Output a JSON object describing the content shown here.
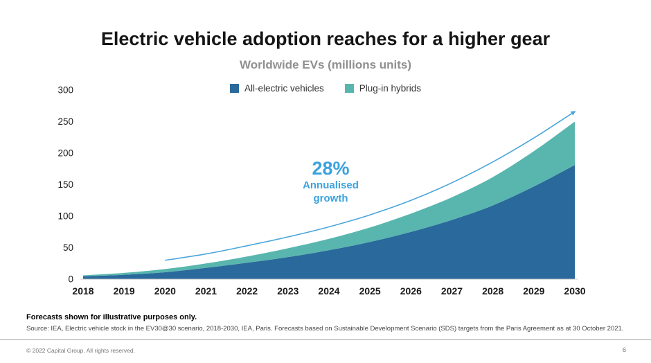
{
  "slide": {
    "title": "Electric vehicle adoption reaches for a higher gear",
    "subtitle": "Worldwide EVs (millions units)"
  },
  "chart_data": {
    "type": "area",
    "stacked": true,
    "title": "Worldwide EVs (millions units)",
    "x": [
      "2018",
      "2019",
      "2020",
      "2021",
      "2022",
      "2023",
      "2024",
      "2025",
      "2026",
      "2027",
      "2028",
      "2029",
      "2030"
    ],
    "series": [
      {
        "name": "All-electric vehicles",
        "color": "#2a699b",
        "values": [
          4.5,
          7,
          11,
          18,
          26,
          35,
          46,
          59,
          75,
          94,
          117,
          147,
          181
        ]
      },
      {
        "name": "Plug-in hybrids",
        "color": "#58b6ae",
        "values": [
          1.5,
          3,
          5,
          7,
          10,
          14,
          18,
          23,
          29,
          36,
          45,
          56,
          69
        ]
      }
    ],
    "totals": [
      6,
      10,
      16,
      25,
      36,
      49,
      64,
      82,
      104,
      130,
      162,
      203,
      250
    ],
    "xlabel": "",
    "ylabel": "",
    "ylim": [
      0,
      300
    ],
    "yticks": [
      0,
      50,
      100,
      150,
      200,
      250,
      300
    ],
    "grid": false,
    "legend_position": "top",
    "annotation": {
      "headline": "28%",
      "line1": "Annualised",
      "line2": "growth",
      "color": "#3ba2de"
    },
    "trend_arrow": {
      "color": "#4aa5da",
      "x": [
        2020,
        2021,
        2022,
        2023,
        2024,
        2025,
        2026,
        2027,
        2028,
        2029,
        2030
      ],
      "values": [
        30,
        40,
        53,
        67,
        83,
        102,
        125,
        153,
        186,
        224,
        266
      ]
    }
  },
  "footer": {
    "disclaimer": "Forecasts shown for illustrative purposes only.",
    "source": "Source: IEA, Electric vehicle stock in the EV30@30 scenario, 2018-2030, IEA, Paris. Forecasts based on Sustainable Development Scenario (SDS) targets from the Paris Agreement as at 30 October 2021.",
    "copyright": "© 2022 Capital Group. All rights reserved.",
    "page_number": "6"
  }
}
